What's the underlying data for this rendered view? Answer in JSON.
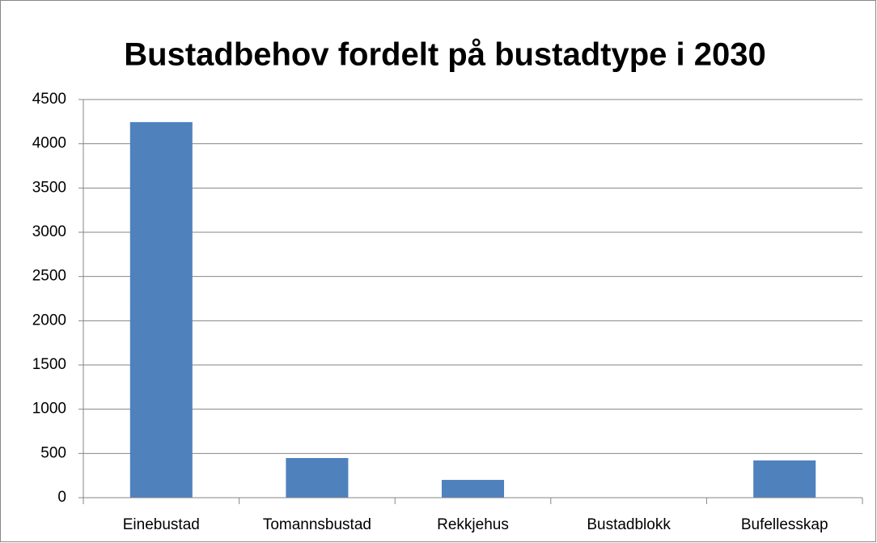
{
  "chart_data": {
    "type": "bar",
    "title": "Bustadbehov fordelt på bustadtype i 2030",
    "categories": [
      "Einebustad",
      "Tomannsbustad",
      "Rekkjehus",
      "Bustadblokk",
      "Bufellesskap"
    ],
    "values": [
      4245,
      448,
      201,
      0,
      421
    ],
    "color": "#4f81bd",
    "ylim": [
      0,
      4500
    ],
    "yticks": [
      0,
      500,
      1000,
      1500,
      2000,
      2500,
      3000,
      3500,
      4000,
      4500
    ],
    "grid": true
  }
}
